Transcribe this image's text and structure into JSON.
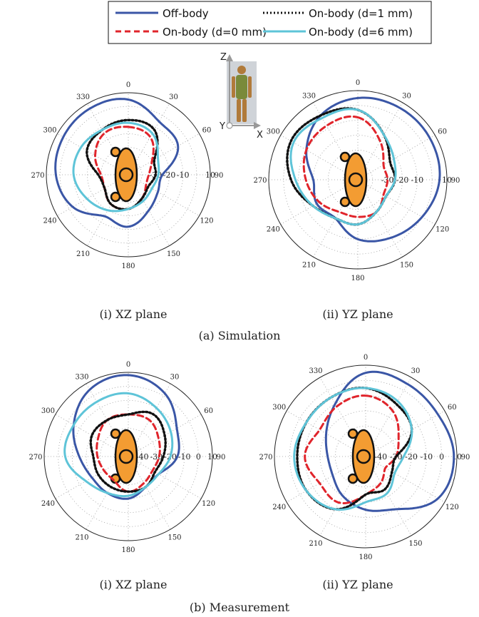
{
  "legend": {
    "items": [
      {
        "label": "Off-body",
        "color": "#3a56a6",
        "dash": "solid"
      },
      {
        "label": "On-body (d=0 mm)",
        "color": "#e0242b",
        "dash": "dash"
      },
      {
        "label": "On-body (d=1 mm)",
        "color": "#111111",
        "dash": "dot"
      },
      {
        "label": "On-body (d=6 mm)",
        "color": "#5ec4d8",
        "dash": "solid"
      }
    ]
  },
  "inset": {
    "z": "Z",
    "y": "Y",
    "x": "X"
  },
  "captions": {
    "xz": "(i) XZ plane",
    "yz": "(ii) YZ plane",
    "sim": "(a) Simulation",
    "meas": "(b) Measurement"
  },
  "chart_data": [
    {
      "type": "polar-line",
      "panel": "simulation-xz",
      "angle_labels": [
        "0",
        "30",
        "60",
        "90",
        "120",
        "150",
        "180",
        "210",
        "240",
        "270",
        "300",
        "330"
      ],
      "ring_labels": [
        "-30",
        "-20",
        "-10",
        "10"
      ],
      "rlim": [
        -50,
        10
      ],
      "series": [
        {
          "name": "Off-body",
          "angles": [
            0,
            30,
            60,
            90,
            120,
            150,
            180,
            210,
            240,
            270,
            300,
            330,
            360
          ],
          "values": [
            5,
            -5,
            -8,
            -25,
            -25,
            -20,
            -12,
            -15,
            -3,
            3,
            5,
            6,
            5
          ]
        },
        {
          "name": "On-body (d=0 mm)",
          "angles": [
            0,
            30,
            60,
            90,
            120,
            150,
            180,
            210,
            240,
            270,
            300,
            330,
            360
          ],
          "values": [
            -15,
            -18,
            -30,
            -35,
            -35,
            -30,
            -25,
            -25,
            -30,
            -30,
            -22,
            -15,
            -15
          ]
        },
        {
          "name": "On-body (d=1 mm)",
          "angles": [
            0,
            30,
            60,
            90,
            120,
            150,
            180,
            210,
            240,
            270,
            300,
            330,
            360
          ],
          "values": [
            -10,
            -12,
            -28,
            -30,
            -33,
            -30,
            -25,
            -25,
            -30,
            -28,
            -15,
            -12,
            -10
          ]
        },
        {
          "name": "On-body (d=6 mm)",
          "angles": [
            0,
            30,
            60,
            90,
            120,
            150,
            180,
            210,
            240,
            270,
            300,
            330,
            360
          ],
          "values": [
            -12,
            -15,
            -25,
            -28,
            -30,
            -28,
            -25,
            -20,
            -15,
            -10,
            -10,
            -12,
            -12
          ]
        }
      ]
    },
    {
      "type": "polar-line",
      "panel": "simulation-yz",
      "angle_labels": [
        "0",
        "30",
        "60",
        "90",
        "120",
        "150",
        "180",
        "210",
        "240",
        "270",
        "300",
        "330"
      ],
      "ring_labels": [
        "-30",
        "-20",
        "-10",
        "10"
      ],
      "rlim": [
        -50,
        10
      ],
      "series": [
        {
          "name": "Off-body",
          "angles": [
            0,
            30,
            60,
            90,
            120,
            150,
            180,
            210,
            240,
            270,
            300,
            330,
            360
          ],
          "values": [
            5,
            6,
            6,
            5,
            0,
            -5,
            -10,
            -20,
            -18,
            -20,
            -10,
            0,
            5
          ]
        },
        {
          "name": "On-body (d=0 mm)",
          "angles": [
            0,
            30,
            60,
            90,
            120,
            150,
            180,
            210,
            240,
            270,
            300,
            330,
            360
          ],
          "values": [
            -8,
            -20,
            -30,
            -30,
            -30,
            -25,
            -25,
            -25,
            -20,
            -15,
            -10,
            -8,
            -8
          ]
        },
        {
          "name": "On-body (d=1 mm)",
          "angles": [
            0,
            30,
            60,
            90,
            120,
            150,
            180,
            210,
            240,
            270,
            300,
            330,
            360
          ],
          "values": [
            -3,
            -15,
            -25,
            -25,
            -28,
            -25,
            -20,
            -20,
            -15,
            -5,
            2,
            0,
            -3
          ]
        },
        {
          "name": "On-body (d=6 mm)",
          "angles": [
            0,
            30,
            60,
            90,
            120,
            150,
            180,
            210,
            240,
            270,
            300,
            330,
            360
          ],
          "values": [
            -3,
            -15,
            -22,
            -25,
            -28,
            -25,
            -20,
            -20,
            -15,
            -8,
            0,
            -2,
            -3
          ]
        }
      ]
    },
    {
      "type": "polar-line",
      "panel": "measurement-xz",
      "angle_labels": [
        "0",
        "30",
        "60",
        "90",
        "120",
        "150",
        "180",
        "210",
        "240",
        "270",
        "300",
        "330"
      ],
      "ring_labels": [
        "-40",
        "-30",
        "-20",
        "-10",
        "0",
        "10"
      ],
      "rlim": [
        -50,
        10
      ],
      "series": [
        {
          "name": "Off-body",
          "angles": [
            0,
            30,
            60,
            90,
            120,
            150,
            180,
            210,
            240,
            270,
            300,
            330,
            360
          ],
          "values": [
            8,
            2,
            -10,
            -15,
            -25,
            -25,
            -20,
            -20,
            -20,
            -15,
            -5,
            5,
            8
          ]
        },
        {
          "name": "On-body (d=0 mm)",
          "angles": [
            0,
            30,
            60,
            90,
            120,
            150,
            180,
            210,
            240,
            270,
            300,
            330,
            360
          ],
          "values": [
            -20,
            -20,
            -25,
            -28,
            -30,
            -28,
            -25,
            -30,
            -30,
            -28,
            -25,
            -20,
            -20
          ]
        },
        {
          "name": "On-body (d=1 mm)",
          "angles": [
            0,
            30,
            60,
            90,
            120,
            150,
            180,
            210,
            240,
            270,
            300,
            330,
            360
          ],
          "values": [
            -20,
            -15,
            -20,
            -25,
            -28,
            -25,
            -25,
            -25,
            -25,
            -25,
            -20,
            -20,
            -20
          ]
        },
        {
          "name": "On-body (d=6 mm)",
          "angles": [
            0,
            30,
            60,
            90,
            120,
            150,
            180,
            210,
            240,
            270,
            300,
            330,
            360
          ],
          "values": [
            -5,
            -10,
            -15,
            -20,
            -25,
            -25,
            -22,
            -20,
            -15,
            -5,
            -5,
            -5,
            -5
          ]
        }
      ]
    },
    {
      "type": "polar-line",
      "panel": "measurement-yz",
      "angle_labels": [
        "0",
        "30",
        "60",
        "90",
        "120",
        "150",
        "180",
        "210",
        "240",
        "270",
        "300",
        "330"
      ],
      "ring_labels": [
        "-40",
        "-30",
        "-20",
        "-10",
        "0",
        "10"
      ],
      "rlim": [
        -50,
        10
      ],
      "series": [
        {
          "name": "Off-body",
          "angles": [
            0,
            30,
            60,
            90,
            120,
            150,
            180,
            210,
            240,
            270,
            300,
            330,
            360
          ],
          "values": [
            5,
            5,
            5,
            8,
            5,
            -10,
            -15,
            -20,
            -25,
            -25,
            -20,
            -10,
            5
          ]
        },
        {
          "name": "On-body (d=0 mm)",
          "angles": [
            0,
            30,
            60,
            90,
            120,
            150,
            180,
            210,
            240,
            270,
            300,
            330,
            360
          ],
          "values": [
            -10,
            -15,
            -25,
            -30,
            -35,
            -30,
            -25,
            -15,
            -15,
            -10,
            -15,
            -12,
            -10
          ]
        },
        {
          "name": "On-body (d=1 mm)",
          "angles": [
            0,
            30,
            60,
            90,
            120,
            150,
            180,
            210,
            240,
            270,
            300,
            330,
            360
          ],
          "values": [
            -5,
            -10,
            -15,
            -30,
            -30,
            -25,
            -25,
            -10,
            -5,
            -5,
            -5,
            -5,
            -5
          ]
        },
        {
          "name": "On-body (d=6 mm)",
          "angles": [
            0,
            30,
            60,
            90,
            120,
            150,
            180,
            210,
            240,
            270,
            300,
            330,
            360
          ],
          "values": [
            -5,
            -8,
            -15,
            -25,
            -28,
            -22,
            -20,
            -10,
            -5,
            -3,
            -5,
            -5,
            -5
          ]
        }
      ]
    }
  ]
}
